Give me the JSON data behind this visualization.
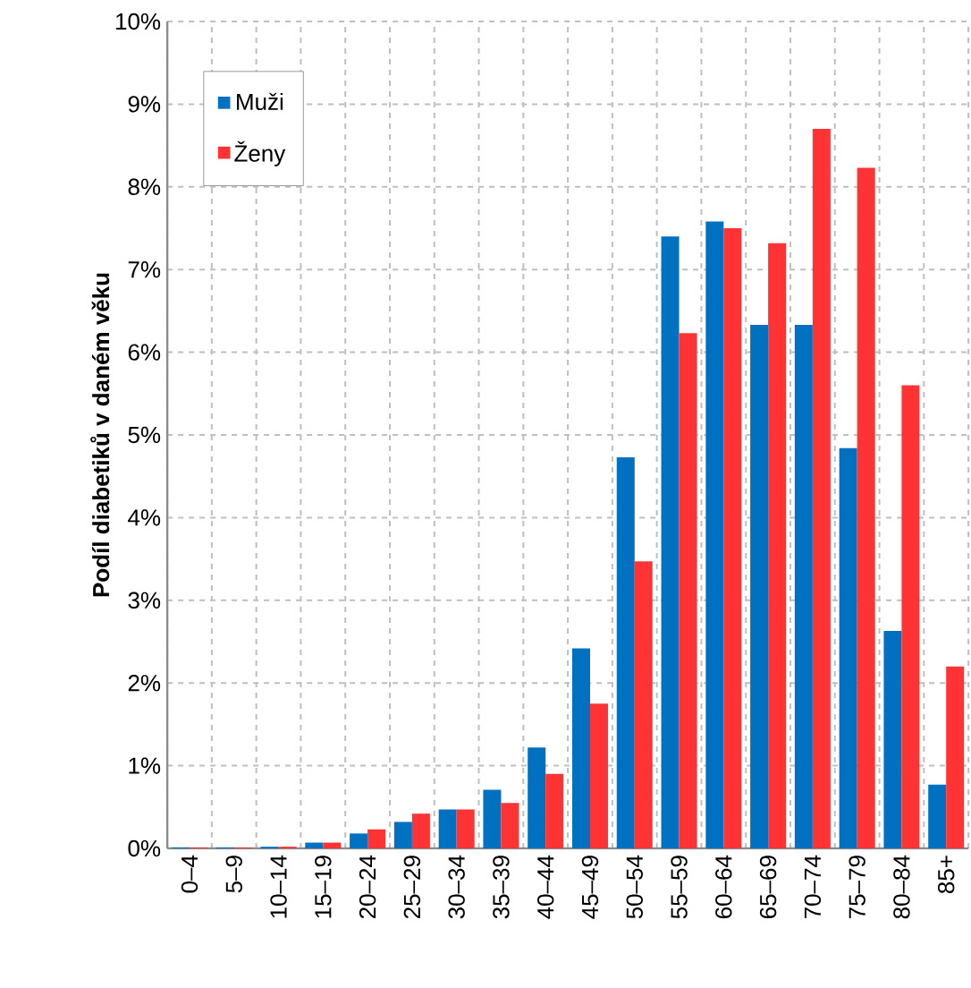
{
  "chart_data": {
    "type": "bar",
    "ylabel": "Podíl diabetiků v daném věku",
    "categories": [
      "0–4",
      "5–9",
      "10–14",
      "15–19",
      "20–24",
      "25–29",
      "30–34",
      "35–39",
      "40–44",
      "45–49",
      "50–54",
      "55–59",
      "60–64",
      "65–69",
      "70–74",
      "75–79",
      "80–84",
      "85+"
    ],
    "series": [
      {
        "name": "Muži",
        "color": "#0070c0",
        "values": [
          0.01,
          0.01,
          0.02,
          0.07,
          0.18,
          0.32,
          0.47,
          0.71,
          1.22,
          2.42,
          4.73,
          7.4,
          7.58,
          6.33,
          6.33,
          4.84,
          2.63,
          0.77
        ]
      },
      {
        "name": "Ženy",
        "color": "#ff3333",
        "values": [
          0.01,
          0.01,
          0.02,
          0.07,
          0.23,
          0.42,
          0.47,
          0.55,
          0.9,
          1.75,
          3.47,
          6.23,
          7.5,
          7.32,
          8.7,
          8.23,
          5.6,
          2.2
        ]
      }
    ],
    "ylim": [
      0,
      10
    ],
    "yticks": [
      {
        "value": 0,
        "label": "0%"
      },
      {
        "value": 1,
        "label": "1%"
      },
      {
        "value": 2,
        "label": "2%"
      },
      {
        "value": 3,
        "label": "3%"
      },
      {
        "value": 4,
        "label": "4%"
      },
      {
        "value": 5,
        "label": "5%"
      },
      {
        "value": 6,
        "label": "6%"
      },
      {
        "value": 7,
        "label": "7%"
      },
      {
        "value": 8,
        "label": "8%"
      },
      {
        "value": 9,
        "label": "9%"
      },
      {
        "value": 10,
        "label": "10%"
      }
    ],
    "grid": true,
    "legend": "top left"
  }
}
